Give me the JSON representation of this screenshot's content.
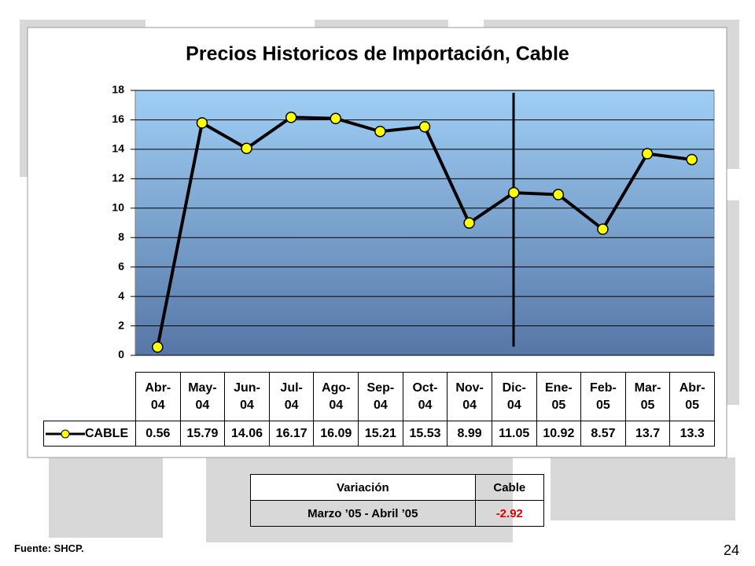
{
  "chart_data": {
    "type": "line",
    "title": "Precios Historicos de Importación, Cable",
    "categories": [
      "Abr-\n04",
      "May-\n04",
      "Jun-\n04",
      "Jul-\n04",
      "Ago-\n04",
      "Sep-\n04",
      "Oct-\n04",
      "Nov-\n04",
      "Dic-\n04",
      "Ene-\n05",
      "Feb-\n05",
      "Mar-\n05",
      "Abr-\n05"
    ],
    "series": [
      {
        "name": "CABLE",
        "color": "#000000",
        "marker_color": "#ffff00",
        "values": [
          0.56,
          15.79,
          14.06,
          16.17,
          16.09,
          15.21,
          15.53,
          8.99,
          11.05,
          10.92,
          8.57,
          13.7,
          13.3
        ]
      }
    ],
    "ylim": [
      0,
      18
    ],
    "yticks": [
      0,
      2,
      4,
      6,
      8,
      10,
      12,
      14,
      16,
      18
    ],
    "grid": true
  },
  "variation_table": {
    "headers": [
      "Variación",
      "Cable"
    ],
    "rows": [
      [
        "Marzo ’05 - Abril ’05",
        "-2.92"
      ]
    ]
  },
  "footer": {
    "source": "Fuente: SHCP.",
    "page": "24"
  }
}
